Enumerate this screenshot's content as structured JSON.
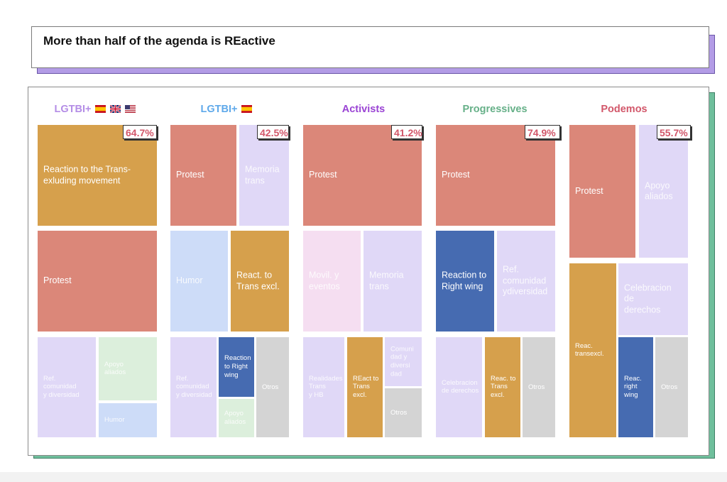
{
  "title": "More than half of the agenda is REactive",
  "colors": {
    "protest": "#db8779",
    "trans": "#d6a04c",
    "right": "#466bb1",
    "lav": "#e0d8f7",
    "green": "#dcefdc",
    "blue": "#cddcf8",
    "pink": "#f5def1",
    "gray": "#d4d4d4"
  },
  "chart_data": [
    {
      "type": "treemap",
      "title": "LGTBI+",
      "flags": [
        "es",
        "gb",
        "us"
      ],
      "title_color": "#b48de6",
      "reactive_pct": "64.7%",
      "cells": [
        {
          "label": "Reaction to the Trans-\nexluding movement",
          "color": "trans"
        },
        {
          "label": "Protest",
          "color": "protest"
        },
        {
          "label": "Ref.\ncomunidad\ny diversidad",
          "color": "lav"
        },
        {
          "label": "Apoyo\naliados",
          "color": "green"
        },
        {
          "label": "Humor",
          "color": "blue"
        }
      ]
    },
    {
      "type": "treemap",
      "title": "LGTBI+",
      "flags": [
        "es"
      ],
      "title_color": "#5fa9ea",
      "reactive_pct": "42.5%",
      "cells": [
        {
          "label": "Protest",
          "color": "protest"
        },
        {
          "label": "Memoria\ntrans",
          "color": "lav"
        },
        {
          "label": "Humor",
          "color": "blue"
        },
        {
          "label": "React. to\nTrans excl.",
          "color": "trans"
        },
        {
          "label": "Ref.\ncomunidad\ny diversidad",
          "color": "lav"
        },
        {
          "label": "Reaction\nto Right\nwing",
          "color": "right"
        },
        {
          "label": "Apoyo\naliados",
          "color": "green"
        },
        {
          "label": "Otros",
          "color": "gray"
        }
      ]
    },
    {
      "type": "treemap",
      "title": "Activists",
      "flags": [],
      "title_color": "#9a43d4",
      "reactive_pct": "41.2%",
      "cells": [
        {
          "label": "Protest",
          "color": "protest"
        },
        {
          "label": "Movil. y\neventos",
          "color": "pink"
        },
        {
          "label": "Memoria\ntrans",
          "color": "lav"
        },
        {
          "label": "Realidades\nTrans\ny HB",
          "color": "lav"
        },
        {
          "label": "REact to\nTrans\nexcl.",
          "color": "trans"
        },
        {
          "label": "Comuni\ndad y\ndiversi\ndad",
          "color": "lav"
        },
        {
          "label": "Otros",
          "color": "gray"
        }
      ]
    },
    {
      "type": "treemap",
      "title": "Progressives",
      "flags": [],
      "title_color": "#66b088",
      "reactive_pct": "74.9%",
      "cells": [
        {
          "label": "Protest",
          "color": "protest"
        },
        {
          "label": "Reaction to\nRight wing",
          "color": "right"
        },
        {
          "label": "Ref.\ncomunidad\nydiversidad",
          "color": "lav"
        },
        {
          "label": "Celebracion\nde derechos",
          "color": "lav"
        },
        {
          "label": "Reac. to\nTrans\nexcl.",
          "color": "trans"
        },
        {
          "label": "Otros",
          "color": "gray"
        }
      ]
    },
    {
      "type": "treemap",
      "title": "Podemos",
      "flags": [],
      "title_color": "#d2576a",
      "reactive_pct": "55.7%",
      "cells": [
        {
          "label": "Protest",
          "color": "protest"
        },
        {
          "label": "Apoyo\naliados",
          "color": "lav"
        },
        {
          "label": "Reac.\ntransexcl.",
          "color": "trans"
        },
        {
          "label": "Celebracion\nde\nderechos",
          "color": "lav"
        },
        {
          "label": "Reac.\nright\nwing",
          "color": "right"
        },
        {
          "label": "Otros",
          "color": "gray"
        }
      ]
    }
  ]
}
